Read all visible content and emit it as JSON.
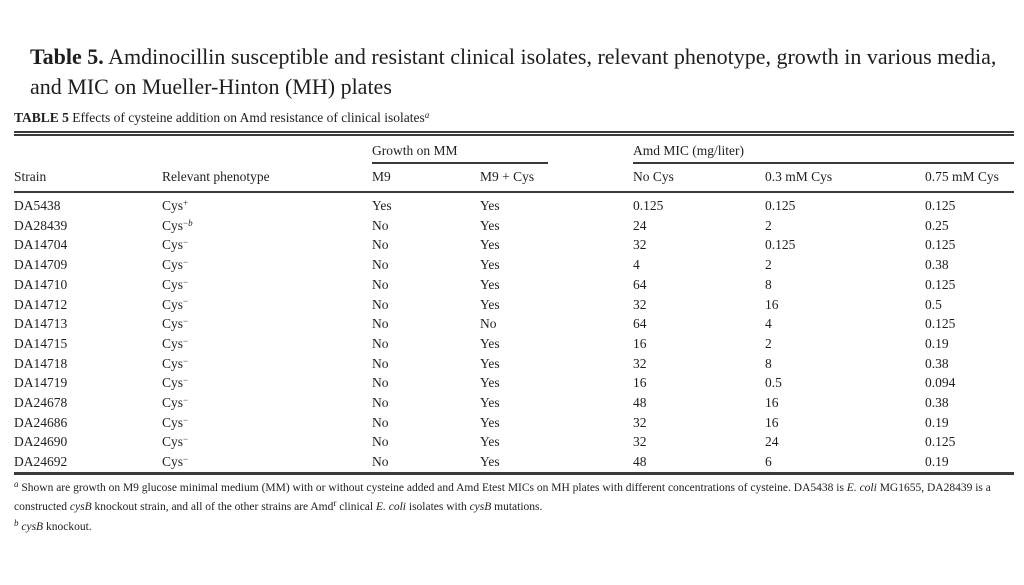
{
  "title": {
    "label": "Table 5.",
    "text": "Amdinocillin susceptible and resistant clinical isolates, relevant phenotype, growth in various media, and MIC on Mueller-Hinton (MH) plates"
  },
  "caption": {
    "label": "TABLE 5",
    "text": "Effects of cysteine addition on Amd resistance of clinical isolates",
    "footnote_mark": "a"
  },
  "table": {
    "groups": [
      {
        "label": "Growth on MM"
      },
      {
        "label": "Amd MIC (mg/liter)"
      }
    ],
    "columns": [
      "Strain",
      "Relevant phenotype",
      "M9",
      "M9 + Cys",
      "No Cys",
      "0.3 mM Cys",
      "0.75 mM Cys"
    ],
    "rows": [
      {
        "strain": "DA5438",
        "phenotype": {
          "base": "Cys",
          "sup": "+",
          "note": ""
        },
        "m9": "Yes",
        "m9cys": "Yes",
        "nocys": "0.125",
        "cys03": "0.125",
        "cys075": "0.125"
      },
      {
        "strain": "DA28439",
        "phenotype": {
          "base": "Cys",
          "sup": "−",
          "note": "b"
        },
        "m9": "No",
        "m9cys": "Yes",
        "nocys": "24",
        "cys03": "2",
        "cys075": "0.25"
      },
      {
        "strain": "DA14704",
        "phenotype": {
          "base": "Cys",
          "sup": "−",
          "note": ""
        },
        "m9": "No",
        "m9cys": "Yes",
        "nocys": "32",
        "cys03": "0.125",
        "cys075": "0.125"
      },
      {
        "strain": "DA14709",
        "phenotype": {
          "base": "Cys",
          "sup": "−",
          "note": ""
        },
        "m9": "No",
        "m9cys": "Yes",
        "nocys": "4",
        "cys03": "2",
        "cys075": "0.38"
      },
      {
        "strain": "DA14710",
        "phenotype": {
          "base": "Cys",
          "sup": "−",
          "note": ""
        },
        "m9": "No",
        "m9cys": "Yes",
        "nocys": "64",
        "cys03": "8",
        "cys075": "0.125"
      },
      {
        "strain": "DA14712",
        "phenotype": {
          "base": "Cys",
          "sup": "−",
          "note": ""
        },
        "m9": "No",
        "m9cys": "Yes",
        "nocys": "32",
        "cys03": "16",
        "cys075": "0.5"
      },
      {
        "strain": "DA14713",
        "phenotype": {
          "base": "Cys",
          "sup": "−",
          "note": ""
        },
        "m9": "No",
        "m9cys": "No",
        "nocys": "64",
        "cys03": "4",
        "cys075": "0.125"
      },
      {
        "strain": "DA14715",
        "phenotype": {
          "base": "Cys",
          "sup": "−",
          "note": ""
        },
        "m9": "No",
        "m9cys": "Yes",
        "nocys": "16",
        "cys03": "2",
        "cys075": "0.19"
      },
      {
        "strain": "DA14718",
        "phenotype": {
          "base": "Cys",
          "sup": "−",
          "note": ""
        },
        "m9": "No",
        "m9cys": "Yes",
        "nocys": "32",
        "cys03": "8",
        "cys075": "0.38"
      },
      {
        "strain": "DA14719",
        "phenotype": {
          "base": "Cys",
          "sup": "−",
          "note": ""
        },
        "m9": "No",
        "m9cys": "Yes",
        "nocys": "16",
        "cys03": "0.5",
        "cys075": "0.094"
      },
      {
        "strain": "DA24678",
        "phenotype": {
          "base": "Cys",
          "sup": "−",
          "note": ""
        },
        "m9": "No",
        "m9cys": "Yes",
        "nocys": "48",
        "cys03": "16",
        "cys075": "0.38"
      },
      {
        "strain": "DA24686",
        "phenotype": {
          "base": "Cys",
          "sup": "−",
          "note": ""
        },
        "m9": "No",
        "m9cys": "Yes",
        "nocys": "32",
        "cys03": "16",
        "cys075": "0.19"
      },
      {
        "strain": "DA24690",
        "phenotype": {
          "base": "Cys",
          "sup": "−",
          "note": ""
        },
        "m9": "No",
        "m9cys": "Yes",
        "nocys": "32",
        "cys03": "24",
        "cys075": "0.125"
      },
      {
        "strain": "DA24692",
        "phenotype": {
          "base": "Cys",
          "sup": "−",
          "note": ""
        },
        "m9": "No",
        "m9cys": "Yes",
        "nocys": "48",
        "cys03": "6",
        "cys075": "0.19"
      }
    ]
  },
  "footnotes": [
    {
      "mark": "a",
      "segments": [
        {
          "t": "Shown are growth on M9 glucose minimal medium (MM) with or without cysteine added and Amd Etest MICs on MH plates with different concentrations of cysteine. DA5438 is "
        },
        {
          "t": "E. coli",
          "i": true
        },
        {
          "t": " MG1655, DA28439 is a constructed "
        },
        {
          "t": "cysB",
          "i": true
        },
        {
          "t": " knockout strain, and all of the other strains are Amd"
        },
        {
          "t": "r",
          "sup": true
        },
        {
          "t": " clinical "
        },
        {
          "t": "E. coli",
          "i": true
        },
        {
          "t": " isolates with "
        },
        {
          "t": "cysB",
          "i": true
        },
        {
          "t": " mutations."
        }
      ]
    },
    {
      "mark": "b",
      "segments": [
        {
          "t": "cysB",
          "i": true
        },
        {
          "t": " knockout."
        }
      ]
    }
  ]
}
